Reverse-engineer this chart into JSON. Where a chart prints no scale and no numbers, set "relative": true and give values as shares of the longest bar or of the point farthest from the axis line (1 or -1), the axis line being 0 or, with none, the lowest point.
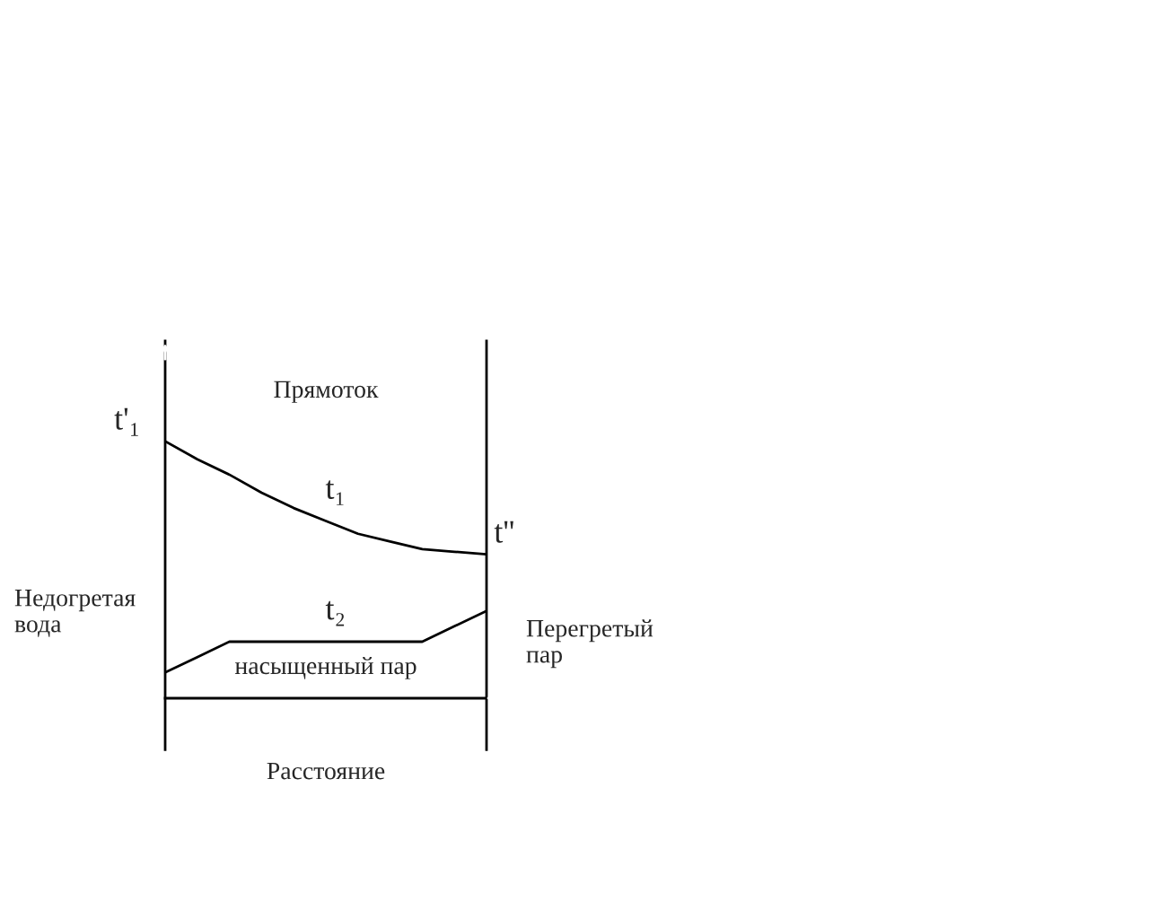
{
  "chart_data": {
    "type": "line",
    "title": "Прямоток",
    "xlabel": "Расстояние",
    "relative": true,
    "categories": [
      null,
      null,
      null,
      null,
      null,
      null,
      null,
      null,
      null,
      null,
      null
    ],
    "series": [
      {
        "name": "t₁",
        "color": "#000000",
        "values": [
          1,
          0.93,
          0.87,
          0.8,
          0.74,
          0.69,
          0.64,
          0.61,
          0.58,
          0.57,
          0.56
        ]
      },
      {
        "name": "t₂",
        "color": "#000000",
        "values": [
          0.1,
          0.16,
          0.22,
          0.22,
          0.22,
          0.22,
          0.22,
          0.22,
          0.22,
          0.28,
          0.34
        ]
      }
    ],
    "annotations": [
      "t'₁",
      "t''",
      "Недогретая вода",
      "Перегретый пар",
      "насыщенный пар"
    ],
    "marker": "none",
    "line_style": "solid"
  }
}
